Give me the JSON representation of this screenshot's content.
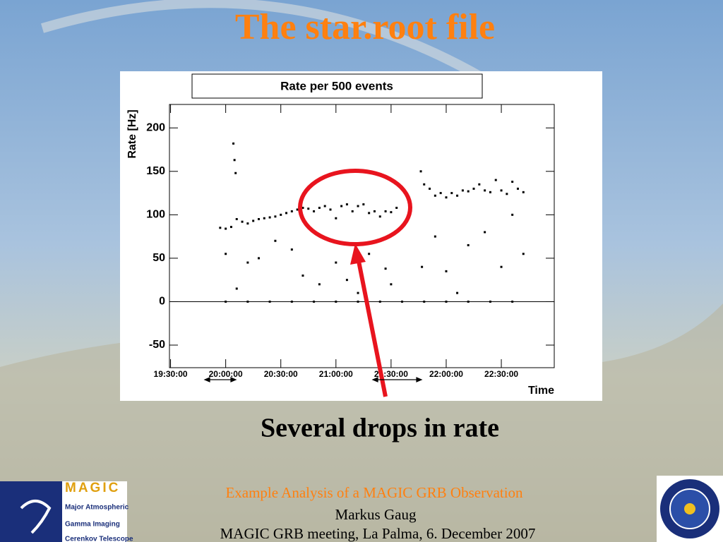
{
  "slide": {
    "title": "The star.root file",
    "caption": "Several drops in rate",
    "footer": {
      "line1": "Example Analysis of a MAGIC GRB Observation",
      "line2": "Markus Gaug",
      "line3": "MAGIC GRB meeting, La Palma, 6. December 2007"
    },
    "logo": {
      "name": "MAGIC",
      "lines": [
        "Major Atmospheric",
        "Gamma Imaging",
        "Cerenkov Telescope"
      ]
    }
  },
  "chart_data": {
    "type": "scatter",
    "title": "Rate per 500 events",
    "y_label": "Rate [Hz]",
    "x_label": "Time",
    "xlim": [
      19.49,
      22.98
    ],
    "ylim": [
      -76,
      227
    ],
    "xticks": [
      {
        "value": 19.5,
        "label": "19:30:00"
      },
      {
        "value": 20.0,
        "label": "20:00:00"
      },
      {
        "value": 20.5,
        "label": "20:30:00"
      },
      {
        "value": 21.0,
        "label": "21:00:00"
      },
      {
        "value": 21.5,
        "label": "21:30:00"
      },
      {
        "value": 22.0,
        "label": "22:00:00"
      },
      {
        "value": 22.5,
        "label": "22:30:00"
      }
    ],
    "yticks": [
      -50,
      0,
      50,
      100,
      150,
      200
    ],
    "series": [
      {
        "name": "Rate",
        "color": "#000000",
        "x": [
          19.95,
          20.0,
          20.05,
          20.07,
          20.08,
          20.09,
          20.1,
          20.15,
          20.2,
          20.25,
          20.3,
          20.35,
          20.4,
          20.45,
          20.5,
          20.55,
          20.6,
          20.65,
          20.7,
          20.75,
          20.8,
          20.85,
          20.9,
          20.95,
          21.0,
          21.05,
          21.1,
          21.15,
          21.2,
          21.25,
          21.3,
          21.35,
          21.4,
          21.45,
          21.5,
          21.55,
          21.77,
          21.8,
          21.85,
          21.9,
          21.95,
          22.0,
          22.05,
          22.1,
          22.15,
          22.2,
          22.25,
          22.3,
          22.35,
          22.4,
          22.45,
          22.5,
          22.55,
          22.6,
          22.65,
          22.7,
          20.0,
          20.1,
          20.2,
          20.3,
          20.45,
          20.6,
          20.7,
          20.85,
          21.0,
          21.1,
          21.2,
          21.3,
          21.45,
          21.5,
          21.78,
          21.9,
          22.0,
          22.1,
          22.2,
          22.35,
          22.5,
          22.6,
          22.7,
          20.0,
          20.2,
          20.4,
          20.6,
          20.8,
          21.0,
          21.2,
          21.4,
          21.6,
          21.8,
          22.0,
          22.2,
          22.4,
          22.6
        ],
        "values": [
          85,
          84,
          86,
          182,
          163,
          148,
          95,
          92,
          90,
          93,
          95,
          96,
          97,
          98,
          100,
          102,
          104,
          106,
          108,
          107,
          104,
          108,
          110,
          106,
          96,
          110,
          112,
          104,
          110,
          112,
          102,
          104,
          98,
          104,
          103,
          108,
          150,
          135,
          130,
          122,
          125,
          120,
          125,
          122,
          128,
          127,
          130,
          135,
          128,
          126,
          140,
          128,
          124,
          138,
          130,
          126,
          55,
          15,
          45,
          50,
          70,
          60,
          30,
          20,
          45,
          25,
          10,
          55,
          38,
          20,
          40,
          75,
          35,
          10,
          65,
          80,
          40,
          100,
          55,
          0,
          0,
          0,
          0,
          0,
          0,
          0,
          0,
          0,
          0,
          0,
          0,
          0,
          0
        ]
      }
    ]
  }
}
